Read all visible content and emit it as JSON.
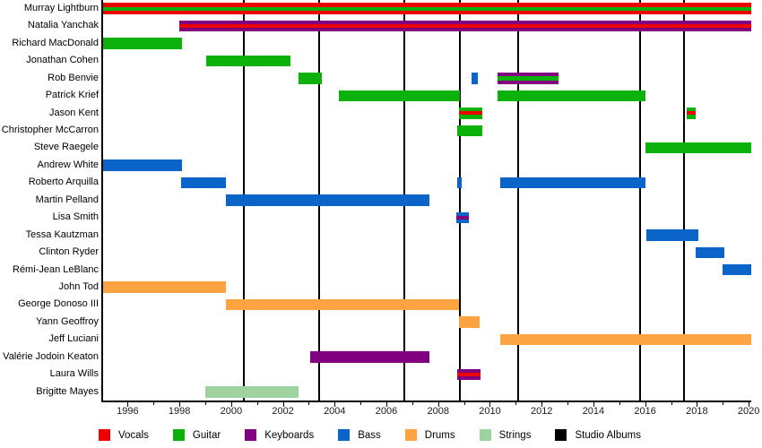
{
  "chart_data": {
    "type": "timeline",
    "description": "Band member tenure timeline with instrument roles and studio album release markers",
    "x_axis": {
      "min": 1995.05,
      "max": 2020.1,
      "labeled_ticks": [
        1996,
        1998,
        2000,
        2002,
        2004,
        2006,
        2008,
        2010,
        2012,
        2014,
        2016,
        2018,
        2020
      ],
      "minor_tick_step": 1
    },
    "roles": {
      "vocals": {
        "label": "Vocals",
        "color": "#ee0000"
      },
      "guitar": {
        "label": "Guitar",
        "color": "#0cb10c"
      },
      "keyboards": {
        "label": "Keyboards",
        "color": "#800080"
      },
      "bass": {
        "label": "Bass",
        "color": "#0b65c8"
      },
      "drums": {
        "label": "Drums",
        "color": "#fea342"
      },
      "strings": {
        "label": "Strings",
        "color": "#9ed29e"
      },
      "albums": {
        "label": "Studio Albums",
        "color": "#000000"
      }
    },
    "legend_order": [
      "vocals",
      "guitar",
      "keyboards",
      "bass",
      "drums",
      "strings",
      "albums"
    ],
    "album_release_years": [
      2000.5,
      2003.4,
      2006.7,
      2008.85,
      2011.1,
      2015.8,
      2017.5
    ],
    "members": [
      {
        "name": "Murray Lightburn",
        "bars": [
          {
            "start": 1995.05,
            "end": 2020.1,
            "role": "vocals",
            "stripe": "guitar"
          }
        ]
      },
      {
        "name": "Natalia Yanchak",
        "bars": [
          {
            "start": 1998.0,
            "end": 2020.1,
            "role": "keyboards",
            "stripe": "vocals"
          }
        ]
      },
      {
        "name": "Richard MacDonald",
        "bars": [
          {
            "start": 1995.05,
            "end": 1998.1,
            "role": "guitar"
          }
        ]
      },
      {
        "name": "Jonathan Cohen",
        "bars": [
          {
            "start": 1999.05,
            "end": 2002.3,
            "role": "guitar"
          }
        ]
      },
      {
        "name": "Rob Benvie",
        "bars": [
          {
            "start": 2002.6,
            "end": 2003.5,
            "role": "guitar"
          },
          {
            "start": 2009.3,
            "end": 2009.55,
            "role": "bass"
          },
          {
            "start": 2010.3,
            "end": 2012.65,
            "role": "keyboards",
            "stripe": "guitar"
          }
        ]
      },
      {
        "name": "Patrick Krief",
        "bars": [
          {
            "start": 2004.15,
            "end": 2008.85,
            "role": "guitar"
          },
          {
            "start": 2010.3,
            "end": 2016.0,
            "role": "guitar"
          }
        ]
      },
      {
        "name": "Jason Kent",
        "bars": [
          {
            "start": 2008.8,
            "end": 2009.7,
            "role": "guitar",
            "stripe": "vocals"
          },
          {
            "start": 2017.6,
            "end": 2017.95,
            "role": "guitar",
            "stripe": "vocals"
          }
        ]
      },
      {
        "name": "Christopher McCarron",
        "bars": [
          {
            "start": 2008.75,
            "end": 2009.7,
            "role": "guitar"
          }
        ]
      },
      {
        "name": "Steve Raegele",
        "bars": [
          {
            "start": 2016.0,
            "end": 2020.1,
            "role": "guitar"
          }
        ]
      },
      {
        "name": "Andrew White",
        "bars": [
          {
            "start": 1995.05,
            "end": 1998.1,
            "role": "bass"
          }
        ]
      },
      {
        "name": "Roberto Arquilla",
        "bars": [
          {
            "start": 1998.05,
            "end": 1999.8,
            "role": "bass"
          },
          {
            "start": 2008.75,
            "end": 2008.9,
            "role": "bass"
          },
          {
            "start": 2010.4,
            "end": 2016.0,
            "role": "bass"
          }
        ]
      },
      {
        "name": "Martin Pelland",
        "bars": [
          {
            "start": 1999.8,
            "end": 2007.65,
            "role": "bass"
          }
        ]
      },
      {
        "name": "Lisa Smith",
        "bars": [
          {
            "start": 2008.7,
            "end": 2009.2,
            "role": "bass",
            "stripe": "keyboards"
          }
        ]
      },
      {
        "name": "Tessa Kautzman",
        "bars": [
          {
            "start": 2016.05,
            "end": 2018.05,
            "role": "bass"
          }
        ]
      },
      {
        "name": "Clinton Ryder",
        "bars": [
          {
            "start": 2017.95,
            "end": 2019.05,
            "role": "bass"
          }
        ]
      },
      {
        "name": "Rémi-Jean LeBlanc",
        "bars": [
          {
            "start": 2019.0,
            "end": 2020.1,
            "role": "bass"
          }
        ]
      },
      {
        "name": "John Tod",
        "bars": [
          {
            "start": 1995.05,
            "end": 1999.8,
            "role": "drums"
          }
        ]
      },
      {
        "name": "George Donoso III",
        "bars": [
          {
            "start": 1999.8,
            "end": 2008.8,
            "role": "drums"
          }
        ]
      },
      {
        "name": "Yann Geoffroy",
        "bars": [
          {
            "start": 2008.8,
            "end": 2009.6,
            "role": "drums"
          }
        ]
      },
      {
        "name": "Jeff Luciani",
        "bars": [
          {
            "start": 2010.4,
            "end": 2020.1,
            "role": "drums"
          }
        ]
      },
      {
        "name": "Valérie Jodoin Keaton",
        "bars": [
          {
            "start": 2003.05,
            "end": 2007.65,
            "role": "keyboards"
          }
        ]
      },
      {
        "name": "Laura Wills",
        "bars": [
          {
            "start": 2008.75,
            "end": 2009.65,
            "role": "keyboards",
            "stripe": "vocals"
          }
        ]
      },
      {
        "name": "Brigitte Mayes",
        "bars": [
          {
            "start": 1999.0,
            "end": 2002.6,
            "role": "strings"
          }
        ]
      }
    ]
  }
}
